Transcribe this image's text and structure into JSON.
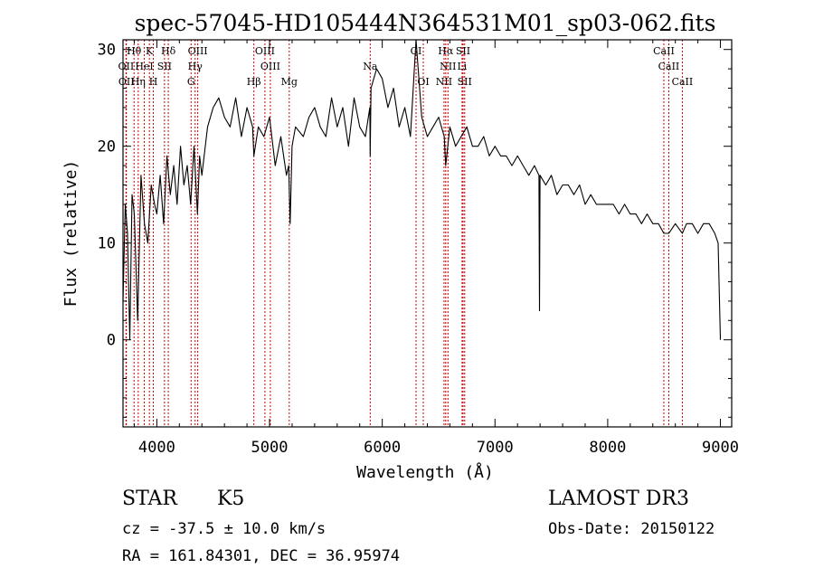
{
  "chart_data": {
    "type": "line",
    "title": "spec-57045-HD105444N364531M01_sp03-062.fits",
    "xlabel": "Wavelength (Å)",
    "ylabel": "Flux (relative)",
    "xlim": [
      3700,
      9100
    ],
    "ylim": [
      -9,
      31
    ],
    "xticks": [
      4000,
      5000,
      6000,
      7000,
      8000,
      9000
    ],
    "yticks": [
      0,
      10,
      20,
      30
    ],
    "grid": false,
    "series": [
      {
        "name": "flux",
        "x": [
          3700,
          3720,
          3740,
          3760,
          3780,
          3800,
          3830,
          3860,
          3890,
          3920,
          3950,
          3980,
          4000,
          4030,
          4060,
          4090,
          4120,
          4150,
          4180,
          4210,
          4240,
          4270,
          4300,
          4330,
          4360,
          4380,
          4400,
          4450,
          4500,
          4550,
          4600,
          4650,
          4700,
          4750,
          4800,
          4850,
          4861,
          4900,
          4950,
          5000,
          5050,
          5100,
          5150,
          5170,
          5183,
          5200,
          5230,
          5300,
          5350,
          5400,
          5450,
          5500,
          5550,
          5600,
          5650,
          5700,
          5750,
          5800,
          5850,
          5890,
          5893,
          5900,
          5950,
          6000,
          6050,
          6100,
          6150,
          6200,
          6250,
          6300,
          6350,
          6400,
          6450,
          6500,
          6550,
          6563,
          6600,
          6650,
          6700,
          6750,
          6800,
          6850,
          6900,
          6950,
          7000,
          7050,
          7100,
          7150,
          7200,
          7250,
          7300,
          7350,
          7390,
          7395,
          7400,
          7450,
          7500,
          7550,
          7600,
          7650,
          7700,
          7750,
          7800,
          7850,
          7900,
          7950,
          8000,
          8050,
          8100,
          8150,
          8200,
          8250,
          8300,
          8350,
          8400,
          8450,
          8498,
          8542,
          8600,
          8662,
          8700,
          8750,
          8800,
          8850,
          8900,
          8950,
          8980,
          9000
        ],
        "values": [
          4,
          14,
          11,
          0,
          15,
          13,
          2,
          17,
          12,
          10,
          16,
          14,
          13,
          17,
          12,
          19,
          15,
          18,
          14,
          20,
          16,
          18,
          14,
          20,
          13,
          19,
          17,
          22,
          24,
          25,
          23,
          22,
          25,
          21,
          24,
          22,
          19,
          22,
          21,
          23,
          18,
          21,
          17,
          18,
          12,
          20,
          22,
          21,
          23,
          24,
          22,
          21,
          25,
          22,
          24,
          20,
          25,
          22,
          21,
          24,
          19,
          26,
          28,
          27,
          24,
          26,
          22,
          24,
          21,
          31,
          23,
          21,
          22,
          23,
          21,
          18,
          22,
          20,
          21,
          22,
          20,
          20,
          21,
          19,
          20,
          19,
          19,
          18,
          19,
          18,
          17,
          18,
          17,
          3,
          17,
          16,
          17,
          15,
          16,
          16,
          15,
          16,
          14,
          15,
          14,
          14,
          14,
          14,
          13,
          14,
          13,
          13,
          12,
          13,
          12,
          12,
          11,
          11,
          12,
          11,
          12,
          12,
          11,
          12,
          12,
          11,
          10,
          0
        ]
      }
    ],
    "lines": [
      {
        "name": "Hθ",
        "x": 3798,
        "row": 0
      },
      {
        "name": "K",
        "x": 3934,
        "row": 0
      },
      {
        "name": "Hδ",
        "x": 4102,
        "row": 0
      },
      {
        "name": "OIII",
        "x": 4363,
        "row": 0
      },
      {
        "name": "OIII",
        "x": 4959,
        "row": 0
      },
      {
        "name": "CI",
        "x": 6300,
        "row": 0
      },
      {
        "name": "Hα",
        "x": 6563,
        "row": 0
      },
      {
        "name": "SII",
        "x": 6717,
        "row": 0
      },
      {
        "name": "CaII",
        "x": 8498,
        "row": 0
      },
      {
        "name": "OII",
        "x": 3727,
        "row": 1
      },
      {
        "name": "HeI",
        "x": 3889,
        "row": 1
      },
      {
        "name": "SII",
        "x": 4068,
        "row": 1
      },
      {
        "name": "Hγ",
        "x": 4340,
        "row": 1
      },
      {
        "name": "OIII",
        "x": 5007,
        "row": 1
      },
      {
        "name": "Na",
        "x": 5893,
        "row": 1
      },
      {
        "name": "NII",
        "x": 6583,
        "row": 1
      },
      {
        "name": "Li",
        "x": 6708,
        "row": 1
      },
      {
        "name": "CaII",
        "x": 8542,
        "row": 1
      },
      {
        "name": "OII",
        "x": 3730,
        "row": 2
      },
      {
        "name": "Hη",
        "x": 3835,
        "row": 2
      },
      {
        "name": "H",
        "x": 3969,
        "row": 2
      },
      {
        "name": "G",
        "x": 4304,
        "row": 2
      },
      {
        "name": "Hβ",
        "x": 4861,
        "row": 2
      },
      {
        "name": "Mg",
        "x": 5175,
        "row": 2
      },
      {
        "name": "OI",
        "x": 6364,
        "row": 2
      },
      {
        "name": "NII",
        "x": 6548,
        "row": 2
      },
      {
        "name": "SII",
        "x": 6731,
        "row": 2
      },
      {
        "name": "CaII",
        "x": 8662,
        "row": 2
      }
    ]
  },
  "footer": {
    "class_label": "STAR",
    "subclass": "K5",
    "survey": "LAMOST DR3",
    "redshift_text": "cz = -37.5 ± 10.0 km/s",
    "obs_date_text": "Obs-Date: 20150122",
    "coords_text": "RA = 161.84301, DEC =  36.95974"
  },
  "colors": {
    "line_marker": "#cc0000",
    "spectrum": "#000000",
    "axes": "#000000",
    "background": "#ffffff"
  }
}
